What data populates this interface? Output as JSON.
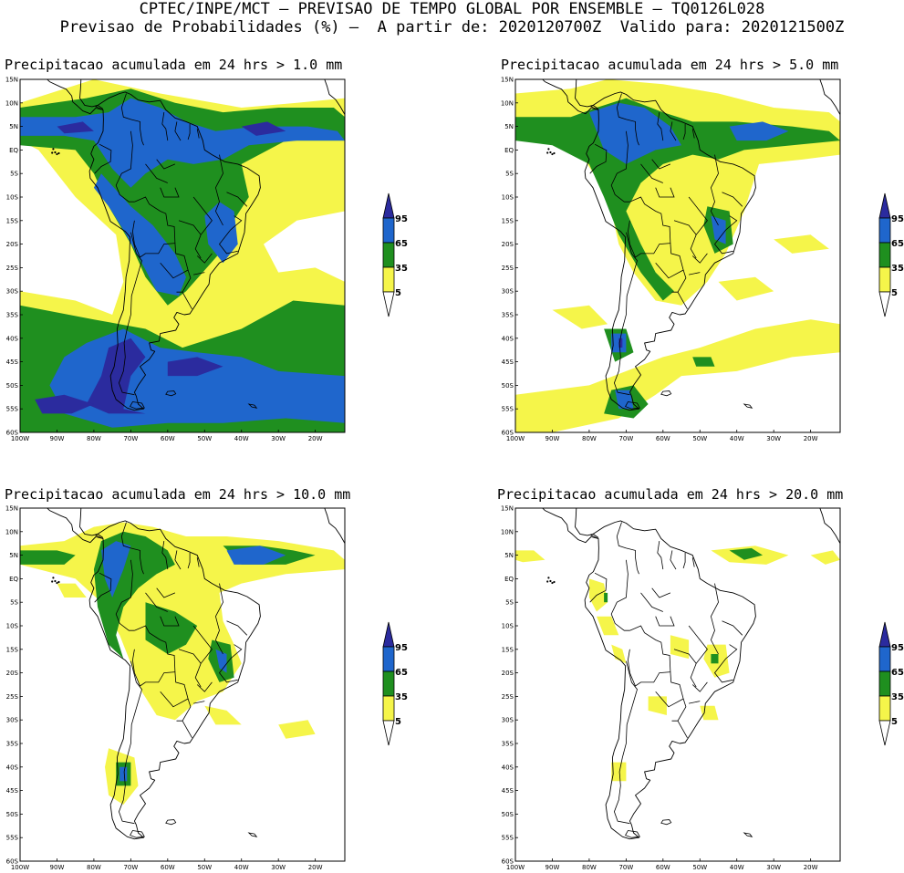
{
  "header": {
    "line1": "CPTEC/INPE/MCT – PREVISAO DE TEMPO GLOBAL POR ENSEMBLE – TQ0126L028",
    "line2": "Previsao de Probabilidades (%) –  A partir de: 2020120700Z  Valido para: 2020121500Z"
  },
  "panels": [
    {
      "title": "Precipitacao acumulada em 24 hrs > 1.0 mm"
    },
    {
      "title": "Precipitacao acumulada em 24 hrs > 5.0 mm"
    },
    {
      "title": "Precipitacao acumulada em 24 hrs > 10.0 mm"
    },
    {
      "title": "Precipitacao acumulada em 24 hrs > 20.0 mm"
    }
  ],
  "lat_labels": [
    "15N",
    "10N",
    "5N",
    "EQ",
    "5S",
    "10S",
    "15S",
    "20S",
    "25S",
    "30S",
    "35S",
    "40S",
    "45S",
    "50S",
    "55S",
    "60S"
  ],
  "lon_labels": [
    "100W",
    "90W",
    "80W",
    "70W",
    "60W",
    "50W",
    "40W",
    "30W",
    "20W"
  ],
  "legend": {
    "labels": [
      "95",
      "65",
      "35",
      "5"
    ],
    "colors": [
      "#2b2b9e",
      "#1f66cc",
      "#1f8f1f",
      "#f5f54a"
    ]
  }
}
